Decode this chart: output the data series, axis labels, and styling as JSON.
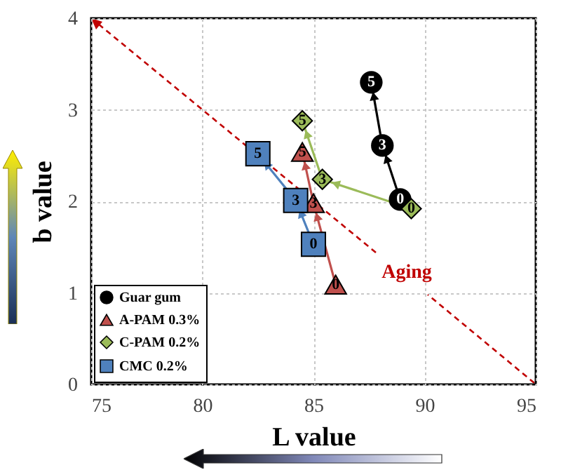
{
  "chart_data": {
    "type": "line",
    "xlabel": "L value",
    "ylabel": "b value",
    "xlim": [
      75,
      95
    ],
    "ylim": [
      0,
      4
    ],
    "xticks": [
      75,
      80,
      85,
      90,
      95
    ],
    "yticks": [
      0,
      1,
      2,
      3,
      4
    ],
    "grid": true,
    "legend": "bottom left",
    "annotations": [
      "Aging",
      {
        "text": "0",
        "x": 88.9,
        "y": 2.02
      },
      {
        "text": "3",
        "x": 88.1,
        "y": 2.61
      },
      {
        "text": "5",
        "x": 87.6,
        "y": 3.3
      },
      {
        "text": "0",
        "x": 86.0,
        "y": 1.09
      },
      {
        "text": "3",
        "x": 85.0,
        "y": 1.98
      },
      {
        "text": "5",
        "x": 84.5,
        "y": 2.54
      },
      {
        "text": "0",
        "x": 89.4,
        "y": 1.92
      },
      {
        "text": "3",
        "x": 85.4,
        "y": 2.24
      },
      {
        "text": "5",
        "x": 84.5,
        "y": 2.88
      },
      {
        "text": "0",
        "x": 85.0,
        "y": 1.53
      },
      {
        "text": "3",
        "x": 84.2,
        "y": 2.01
      },
      {
        "text": "5",
        "x": 82.5,
        "y": 2.52
      }
    ],
    "series": [
      {
        "name": "Guar gum",
        "color": "#000000",
        "marker": "circle",
        "x": [
          88.9,
          88.1,
          87.6
        ],
        "values": [
          2.02,
          2.61,
          3.3
        ]
      },
      {
        "name": "A-PAM 0.3%",
        "color": "#c0504d",
        "marker": "triangle",
        "x": [
          86.0,
          85.0,
          84.5
        ],
        "values": [
          1.09,
          1.98,
          2.54
        ]
      },
      {
        "name": "C-PAM 0.2%",
        "color": "#9bbb59",
        "marker": "diamond",
        "x": [
          89.4,
          85.4,
          84.5
        ],
        "values": [
          1.92,
          2.24,
          2.88
        ]
      },
      {
        "name": "CMC 0.2%",
        "color": "#4f81bd",
        "marker": "square",
        "x": [
          85.0,
          84.2,
          82.5
        ],
        "values": [
          1.53,
          2.01,
          2.52
        ]
      }
    ]
  }
}
